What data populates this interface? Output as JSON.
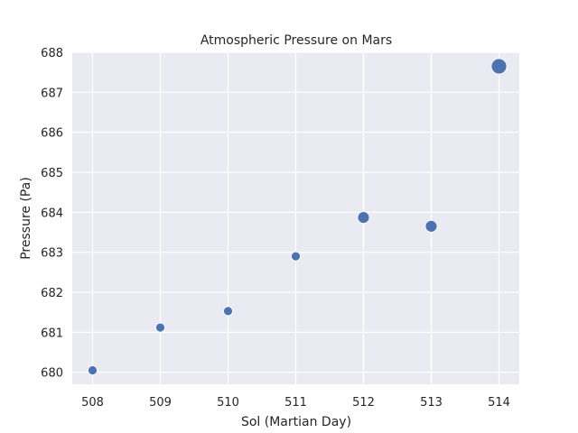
{
  "chart_data": {
    "type": "scatter",
    "title": "Atmospheric Pressure on Mars",
    "xlabel": "Sol (Martian Day)",
    "ylabel": "Pressure (Pa)",
    "x": [
      508,
      509,
      510,
      511,
      512,
      513,
      514
    ],
    "y": [
      680.05,
      681.12,
      681.53,
      682.9,
      683.87,
      683.65,
      687.65
    ],
    "marker_size_level": [
      1,
      1,
      1,
      1,
      2,
      2,
      3
    ],
    "xlim": [
      507.7,
      514.3
    ],
    "ylim": [
      679.7,
      688.0
    ],
    "xticks": [
      508,
      509,
      510,
      511,
      512,
      513,
      514
    ],
    "yticks": [
      680,
      681,
      682,
      683,
      684,
      685,
      686,
      687,
      688
    ],
    "grid": true,
    "legend": "none",
    "colors": {
      "point": "#4c72b0",
      "plot_bg": "#eaeaf2",
      "grid": "#ffffff"
    }
  }
}
